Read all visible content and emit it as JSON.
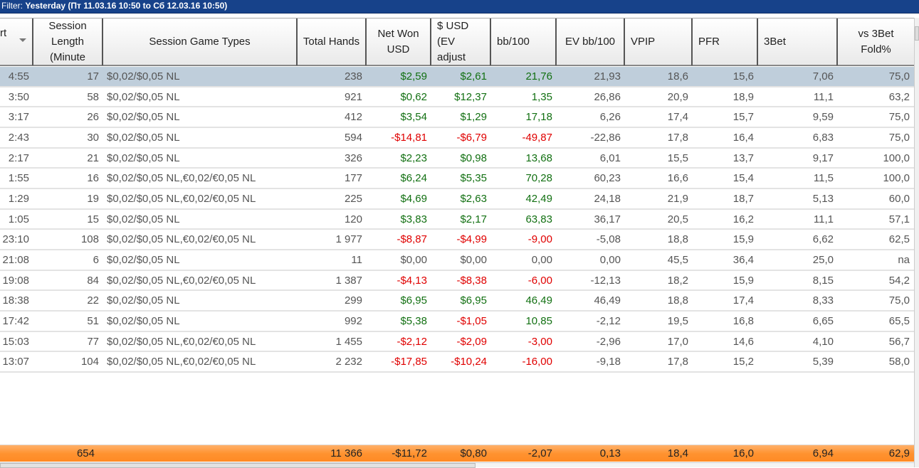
{
  "filter": {
    "label": "Filter:",
    "value": "Yesterday (Пт 11.03.16 10:50 to Сб 12.03.16 10:50)"
  },
  "columns": [
    "rt",
    "Session Length (Minute",
    "Session Game Types",
    "Total Hands",
    "Net Won USD",
    "$ USD (EV adjust",
    "bb/100",
    "EV bb/100",
    "VPIP",
    "PFR",
    "3Bet",
    "vs 3Bet Fold%"
  ],
  "rows": [
    [
      "4:55",
      "17",
      "$0,02/$0,05 NL",
      "238",
      "$2,59",
      "$2,61",
      "21,76",
      "21,93",
      "18,6",
      "15,6",
      "7,06",
      "75,0"
    ],
    [
      "3:50",
      "58",
      "$0,02/$0,05 NL",
      "921",
      "$0,62",
      "$12,37",
      "1,35",
      "26,86",
      "20,9",
      "18,9",
      "11,1",
      "63,2"
    ],
    [
      "3:17",
      "26",
      "$0,02/$0,05 NL",
      "412",
      "$3,54",
      "$1,29",
      "17,18",
      "6,26",
      "17,4",
      "15,7",
      "9,59",
      "75,0"
    ],
    [
      "2:43",
      "30",
      "$0,02/$0,05 NL",
      "594",
      "-$14,81",
      "-$6,79",
      "-49,87",
      "-22,86",
      "17,8",
      "16,4",
      "6,83",
      "75,0"
    ],
    [
      "2:17",
      "21",
      "$0,02/$0,05 NL",
      "326",
      "$2,23",
      "$0,98",
      "13,68",
      "6,01",
      "15,5",
      "13,7",
      "9,17",
      "100,0"
    ],
    [
      "1:55",
      "16",
      "$0,02/$0,05 NL,€0,02/€0,05 NL",
      "177",
      "$6,24",
      "$5,35",
      "70,28",
      "60,23",
      "16,6",
      "15,4",
      "11,5",
      "100,0"
    ],
    [
      "1:29",
      "19",
      "$0,02/$0,05 NL,€0,02/€0,05 NL",
      "225",
      "$4,69",
      "$2,63",
      "42,49",
      "24,18",
      "21,9",
      "18,7",
      "5,13",
      "60,0"
    ],
    [
      "1:05",
      "15",
      "$0,02/$0,05 NL",
      "120",
      "$3,83",
      "$2,17",
      "63,83",
      "36,17",
      "20,5",
      "16,2",
      "11,1",
      "57,1"
    ],
    [
      "23:10",
      "108",
      "$0,02/$0,05 NL,€0,02/€0,05 NL",
      "1 977",
      "-$8,87",
      "-$4,99",
      "-9,00",
      "-5,08",
      "18,8",
      "15,9",
      "6,62",
      "62,5"
    ],
    [
      "21:08",
      "6",
      "$0,02/$0,05 NL",
      "11",
      "$0,00",
      "$0,00",
      "0,00",
      "0,00",
      "45,5",
      "36,4",
      "25,0",
      "na"
    ],
    [
      "19:08",
      "84",
      "$0,02/$0,05 NL,€0,02/€0,05 NL",
      "1 387",
      "-$4,13",
      "-$8,38",
      "-6,00",
      "-12,13",
      "18,2",
      "15,9",
      "8,15",
      "54,2"
    ],
    [
      "18:38",
      "22",
      "$0,02/$0,05 NL",
      "299",
      "$6,95",
      "$6,95",
      "46,49",
      "46,49",
      "18,8",
      "17,4",
      "8,33",
      "75,0"
    ],
    [
      "17:42",
      "51",
      "$0,02/$0,05 NL",
      "992",
      "$5,38",
      "-$1,05",
      "10,85",
      "-2,12",
      "19,5",
      "16,8",
      "6,65",
      "65,5"
    ],
    [
      "15:03",
      "77",
      "$0,02/$0,05 NL,€0,02/€0,05 NL",
      "1 455",
      "-$2,12",
      "-$2,09",
      "-3,00",
      "-2,96",
      "17,0",
      "14,6",
      "4,10",
      "56,7"
    ],
    [
      "13:07",
      "104",
      "$0,02/$0,05 NL,€0,02/€0,05 NL",
      "2 232",
      "-$17,85",
      "-$10,24",
      "-16,00",
      "-9,18",
      "17,8",
      "15,2",
      "5,39",
      "58,0"
    ]
  ],
  "totals": [
    "",
    "654",
    "",
    "11 366",
    "-$11,72",
    "$0,80",
    "-2,07",
    "0,13",
    "18,4",
    "16,0",
    "6,94",
    "62,9"
  ],
  "colors": {
    "positive": "#127012",
    "negative": "#e00000",
    "header_bar": "#17428a",
    "total_bar": "#ff9330",
    "selected_row": "#bfcedb"
  }
}
